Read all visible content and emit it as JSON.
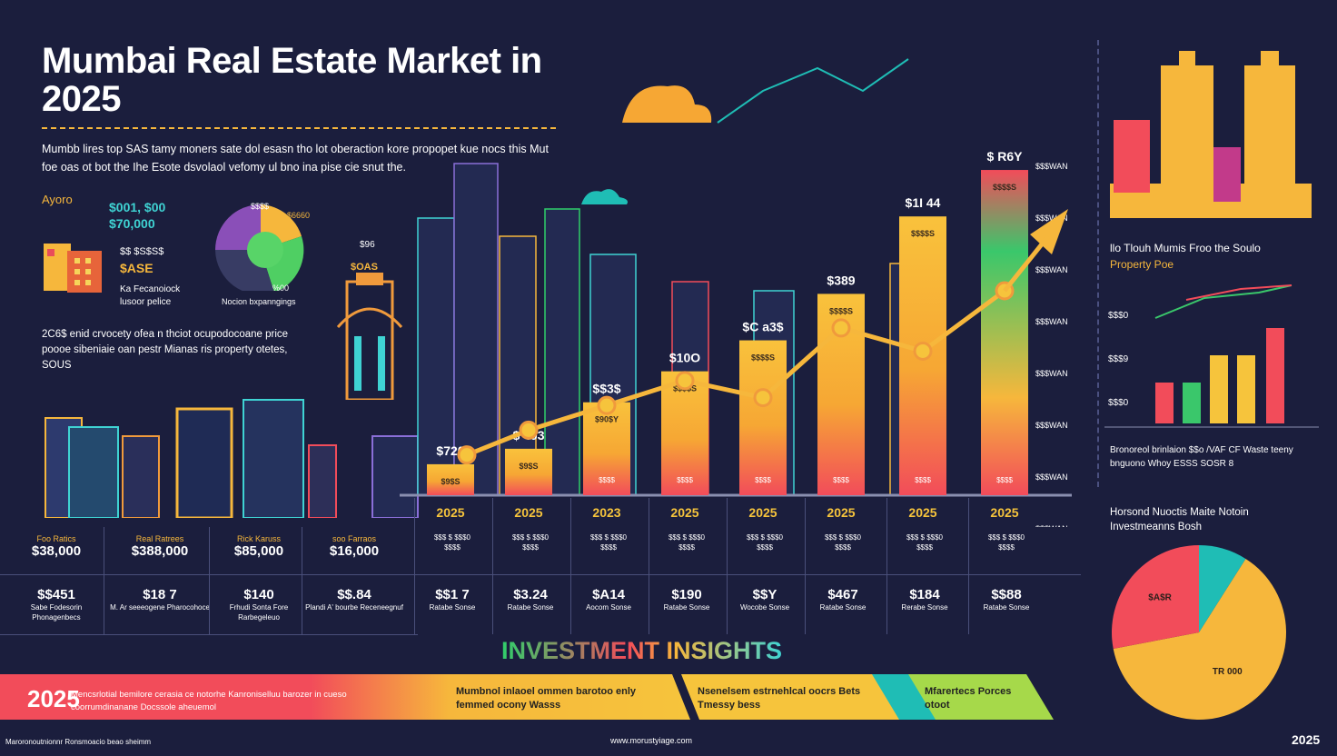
{
  "title": "Mumbai Real Estate Market in 2025",
  "intro": "Mumbb lires top SAS tamy moners sate dol esasn tho lot oberaction kore propopet kue nocs this Mut foe oas ot bot the Ihe Esote dsvolaol vefomy ul bno ina pise cie snut the.",
  "left_panel": {
    "label_a": "Ayoro",
    "value_a1": "$001, $00",
    "value_a2": "$70,000",
    "value_b1": "$$ $S$S$",
    "value_b2": "$ASE",
    "note_b": "Ka Fecanoiock lusoor pelice",
    "pie_top": "$$$$",
    "pie_right": "$6660",
    "pie_inner": "%00",
    "pie_caption": "Nocion bxpanngings",
    "tower_top": "$96",
    "tower_label": "$OAS",
    "paragraph": "2C6$ enid crvocety ofea n thciot ocupodocoane price poooe sibeniaie oan pestr Mianas ris property otetes, SOUS"
  },
  "chart_data": {
    "type": "bar",
    "categories": [
      "2025",
      "2025",
      "2023",
      "2025",
      "2025",
      "2025",
      "2025",
      "2025"
    ],
    "values": [
      2,
      3,
      6,
      8,
      10,
      13,
      18,
      21
    ],
    "bar_top_labels": [
      "$720",
      "$ 403",
      "$$3$",
      "$10O",
      "$C a3$",
      "$389",
      "$1I 44",
      "$ R6Y"
    ],
    "bar_inner_labels": [
      "$9$S",
      "$9$S",
      "$90$Y",
      "$$$$S",
      "$$$$S",
      "$$$$S",
      "$$$$S",
      "$$$$S"
    ],
    "bar_base_labels": [
      "",
      "",
      "$$$$",
      "$$$$",
      "$$$$",
      "$$$$",
      "$$$$",
      "$$$$"
    ],
    "trend_values": [
      2.6,
      4.2,
      5.8,
      7.4,
      6.3,
      10.8,
      9.3,
      13.2
    ],
    "y_ticks": [
      "$$$WAN",
      "$$$WAN",
      "$$$WAN",
      "$$$WAN",
      "$$$WAN",
      "$$$WAN",
      "$$$WAN",
      "$$$WAN"
    ],
    "xlabel": "",
    "ylabel": "",
    "ylim": [
      0,
      22
    ],
    "bar_colors": [
      "#f9c23c",
      "#f6a734",
      "#f24c5a"
    ],
    "trend_color": "#f6b73c"
  },
  "stats_left": {
    "heads": [
      "Foo Ratics",
      "Real Ratrees",
      "Rick Karuss",
      "soo Farraos"
    ],
    "values": [
      "$38,000",
      "$388,000",
      "$85,000",
      "$16,000"
    ],
    "values2": [
      "$$451",
      "$18 7",
      "$140",
      "$$.84"
    ],
    "notes2": [
      "Sabe Fodesorin Phonagenbecs",
      "M. Ar seeeogene Pharocohoce",
      "Frhudi Sonta Fore Rarbegeleuo",
      "Plandi A' bourbe Receneegnuf"
    ]
  },
  "stats_right": {
    "heads": [
      "$$$ $ $$$0",
      "$$$ $ $$$0",
      "$$$ $ $$$0",
      "$$$ $ $$$0",
      "$$$ $ $$$0",
      "$$$ $ $$$0",
      "$$$ $ $$$0",
      "$$$ $ $$$0"
    ],
    "subs": [
      "$$$$",
      "$$$$",
      "$$$$",
      "$$$$",
      "$$$$",
      "$$$$",
      "$$$$",
      "$$$$"
    ],
    "values": [
      "$$1 7",
      "$3.24",
      "$A14",
      "$190",
      "$$Y",
      "$467",
      "$184",
      "$$88"
    ],
    "notes": [
      "Ratabe Sonse",
      "Ratabe Sonse",
      "Aocom Sonse",
      "Ratabe Sonse",
      "Wocobe Sonse",
      "Ratabe Sonse",
      "Rerabe Sonse",
      "Ratabe Sonse"
    ]
  },
  "right_panel": {
    "heading1": "llo Tlouh Mumis Froo the Soulo",
    "heading1b": "Property Poe",
    "mini_labels": [
      "$$$0",
      "$$$9",
      "$$$0"
    ],
    "mini_bar_values": [
      3,
      3,
      5,
      5,
      7
    ],
    "mini_bar_colors": [
      "#f24c5a",
      "#3ac76b",
      "#f6c43c",
      "#f6c43c",
      "#f24c5a"
    ],
    "note": "Bronoreol brinlaion $$o /VAF CF Waste teeny bnguono Whoy ESSS SOSR 8",
    "heading2": "Horsond Nuoctis Maite Notoin Investmeanns Bosh",
    "pie": [
      {
        "label": "TR 000",
        "value": 63,
        "color": "#f6b73c"
      },
      {
        "label": "$A$R",
        "value": 28,
        "color": "#f24c5a"
      },
      {
        "label": "",
        "value": 9,
        "color": "#1fbdb5"
      }
    ]
  },
  "insights_title": "INVESTMENT INSIGHTS",
  "banner": {
    "year": "2025",
    "seg1": "Mencsrlotial bemilore cerasia ce notorhe Kanroniselluu barozer in cueso coorrumdinanane Docssole aheuemol",
    "seg2": "Mumbnol inlaoel ommen barotoo enly femmed ocony Wasss",
    "seg3": "Nsenelsem estrnehlcal oocrs Bets Tmessy bess",
    "seg4": "Mfarertecs Porces otoot"
  },
  "footer": {
    "url": "www.morustyiage.com",
    "left": "Maroronoutnionnr Ronsmoacio beao sheimm",
    "year": "2025"
  }
}
